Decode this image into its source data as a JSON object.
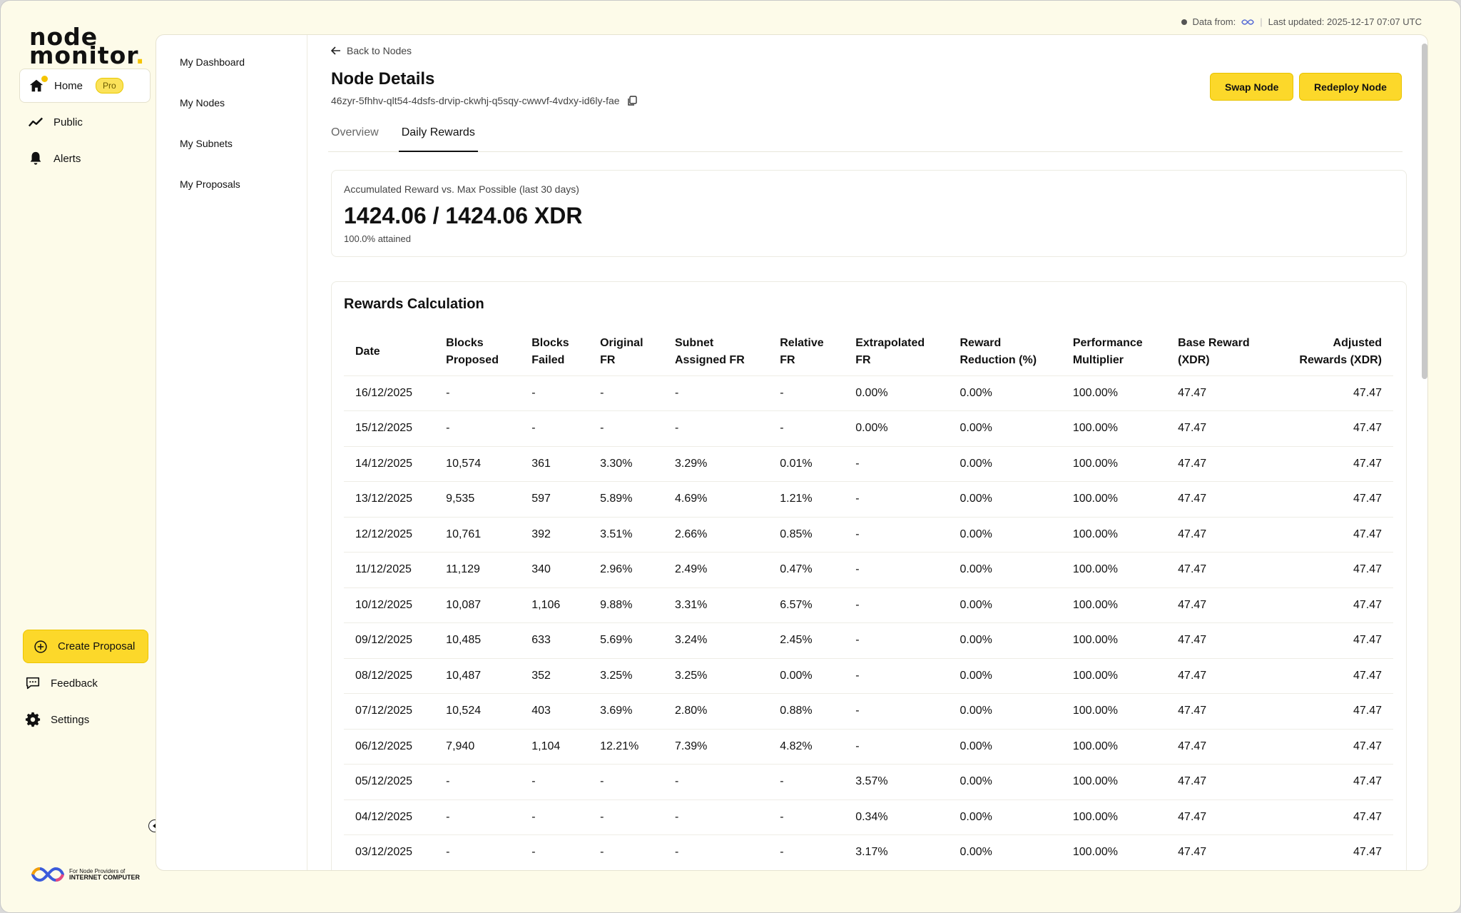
{
  "status": {
    "data_from_label": "Data from:",
    "last_updated": "Last updated: 2025-12-17 07:07 UTC"
  },
  "logo": {
    "line1": "node",
    "line2": "monitor",
    "dot": "."
  },
  "sidebar": {
    "items": [
      {
        "label": "Home",
        "badge": "Pro"
      },
      {
        "label": "Public"
      },
      {
        "label": "Alerts"
      }
    ],
    "create_proposal": "Create Proposal",
    "feedback": "Feedback",
    "settings": "Settings",
    "footer_line1": "For Node Providers of",
    "footer_line2": "INTERNET COMPUTER"
  },
  "subnav": {
    "items": [
      "My Dashboard",
      "My Nodes",
      "My Subnets",
      "My Proposals"
    ]
  },
  "header": {
    "back_label": "Back to Nodes",
    "title": "Node Details",
    "node_id": "46zyr-5fhhv-qlt54-4dsfs-drvip-ckwhj-q5sqy-cwwvf-4vdxy-id6ly-fae",
    "swap_label": "Swap Node",
    "redeploy_label": "Redeploy Node"
  },
  "tabs": [
    {
      "label": "Overview"
    },
    {
      "label": "Daily Rewards"
    }
  ],
  "accumulated": {
    "label": "Accumulated Reward vs. Max Possible (last 30 days)",
    "value": "1424.06 / 1424.06 XDR",
    "attained": "100.0% attained"
  },
  "rewards": {
    "title": "Rewards Calculation",
    "columns": [
      [
        "Date",
        ""
      ],
      [
        "Blocks",
        "Proposed"
      ],
      [
        "Blocks",
        "Failed"
      ],
      [
        "Original",
        "FR"
      ],
      [
        "Subnet",
        "Assigned FR"
      ],
      [
        "Relative",
        "FR"
      ],
      [
        "Extrapolated",
        "FR"
      ],
      [
        "Reward",
        "Reduction (%)"
      ],
      [
        "Performance",
        "Multiplier"
      ],
      [
        "Base Reward",
        "(XDR)"
      ],
      [
        "Adjusted",
        "Rewards (XDR)"
      ]
    ],
    "rows": [
      [
        "16/12/2025",
        "-",
        "-",
        "-",
        "-",
        "-",
        "0.00%",
        "0.00%",
        "100.00%",
        "47.47",
        "47.47"
      ],
      [
        "15/12/2025",
        "-",
        "-",
        "-",
        "-",
        "-",
        "0.00%",
        "0.00%",
        "100.00%",
        "47.47",
        "47.47"
      ],
      [
        "14/12/2025",
        "10,574",
        "361",
        "3.30%",
        "3.29%",
        "0.01%",
        "-",
        "0.00%",
        "100.00%",
        "47.47",
        "47.47"
      ],
      [
        "13/12/2025",
        "9,535",
        "597",
        "5.89%",
        "4.69%",
        "1.21%",
        "-",
        "0.00%",
        "100.00%",
        "47.47",
        "47.47"
      ],
      [
        "12/12/2025",
        "10,761",
        "392",
        "3.51%",
        "2.66%",
        "0.85%",
        "-",
        "0.00%",
        "100.00%",
        "47.47",
        "47.47"
      ],
      [
        "11/12/2025",
        "11,129",
        "340",
        "2.96%",
        "2.49%",
        "0.47%",
        "-",
        "0.00%",
        "100.00%",
        "47.47",
        "47.47"
      ],
      [
        "10/12/2025",
        "10,087",
        "1,106",
        "9.88%",
        "3.31%",
        "6.57%",
        "-",
        "0.00%",
        "100.00%",
        "47.47",
        "47.47"
      ],
      [
        "09/12/2025",
        "10,485",
        "633",
        "5.69%",
        "3.24%",
        "2.45%",
        "-",
        "0.00%",
        "100.00%",
        "47.47",
        "47.47"
      ],
      [
        "08/12/2025",
        "10,487",
        "352",
        "3.25%",
        "3.25%",
        "0.00%",
        "-",
        "0.00%",
        "100.00%",
        "47.47",
        "47.47"
      ],
      [
        "07/12/2025",
        "10,524",
        "403",
        "3.69%",
        "2.80%",
        "0.88%",
        "-",
        "0.00%",
        "100.00%",
        "47.47",
        "47.47"
      ],
      [
        "06/12/2025",
        "7,940",
        "1,104",
        "12.21%",
        "7.39%",
        "4.82%",
        "-",
        "0.00%",
        "100.00%",
        "47.47",
        "47.47"
      ],
      [
        "05/12/2025",
        "-",
        "-",
        "-",
        "-",
        "-",
        "3.57%",
        "0.00%",
        "100.00%",
        "47.47",
        "47.47"
      ],
      [
        "04/12/2025",
        "-",
        "-",
        "-",
        "-",
        "-",
        "0.34%",
        "0.00%",
        "100.00%",
        "47.47",
        "47.47"
      ],
      [
        "03/12/2025",
        "-",
        "-",
        "-",
        "-",
        "-",
        "3.17%",
        "0.00%",
        "100.00%",
        "47.47",
        "47.47"
      ]
    ]
  },
  "colors": {
    "accent": "#fcd82a",
    "background": "#fdfbe9"
  },
  "icons": [
    "home-icon",
    "trend-icon",
    "bell-icon",
    "plus-circle-icon",
    "chat-icon",
    "gear-icon",
    "arrow-left-icon",
    "copy-icon",
    "collapse-icon",
    "infinity-icon"
  ]
}
